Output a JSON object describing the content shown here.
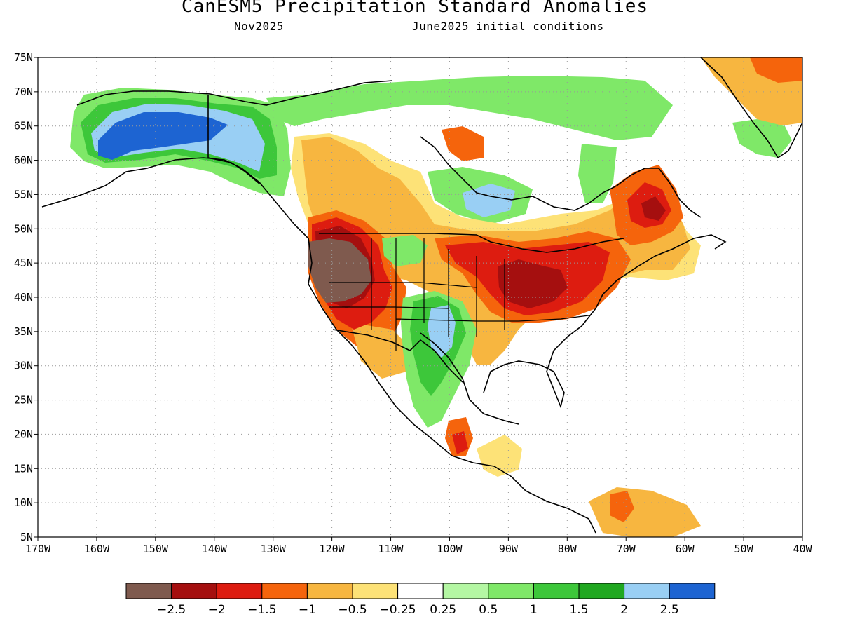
{
  "title": "CanESM5 Precipitation Standard Anomalies",
  "subtitle_left": "Nov2025",
  "subtitle_right": "June2025 initial conditions",
  "map": {
    "lon_range": [
      -170,
      -40
    ],
    "lat_range": [
      5,
      75
    ],
    "lon_ticks": [
      "170W",
      "160W",
      "150W",
      "140W",
      "130W",
      "120W",
      "110W",
      "100W",
      "90W",
      "80W",
      "70W",
      "60W",
      "50W",
      "40W"
    ],
    "lat_ticks": [
      "75N",
      "70N",
      "65N",
      "60N",
      "55N",
      "50N",
      "45N",
      "40N",
      "35N",
      "30N",
      "25N",
      "20N",
      "15N",
      "10N",
      "5N"
    ]
  },
  "colorbar": {
    "colors": [
      "#7f5a4e",
      "#a50f0f",
      "#dd1c10",
      "#f5640c",
      "#f7b640",
      "#fde277",
      "#ffffff",
      "#b4f7a3",
      "#7fe868",
      "#3dc73a",
      "#20a820",
      "#99cff4",
      "#1d64d2"
    ],
    "labels": [
      "−2.5",
      "−2",
      "−1.5",
      "−1",
      "−0.5",
      "−0.25",
      "0.25",
      "0.5",
      "1",
      "1.5",
      "2",
      "2.5"
    ]
  },
  "palette": {
    "brown": "#7f5a4e",
    "darkred": "#a50f0f",
    "red": "#dd1c10",
    "orange": "#f5640c",
    "lightorange": "#f7b640",
    "yellow": "#fde277",
    "lightgreen": "#b4f7a3",
    "green": "#7fe868",
    "midgreen": "#3dc73a",
    "darkgreen": "#20a820",
    "lightblue": "#99cff4",
    "blue": "#1d64d2"
  }
}
